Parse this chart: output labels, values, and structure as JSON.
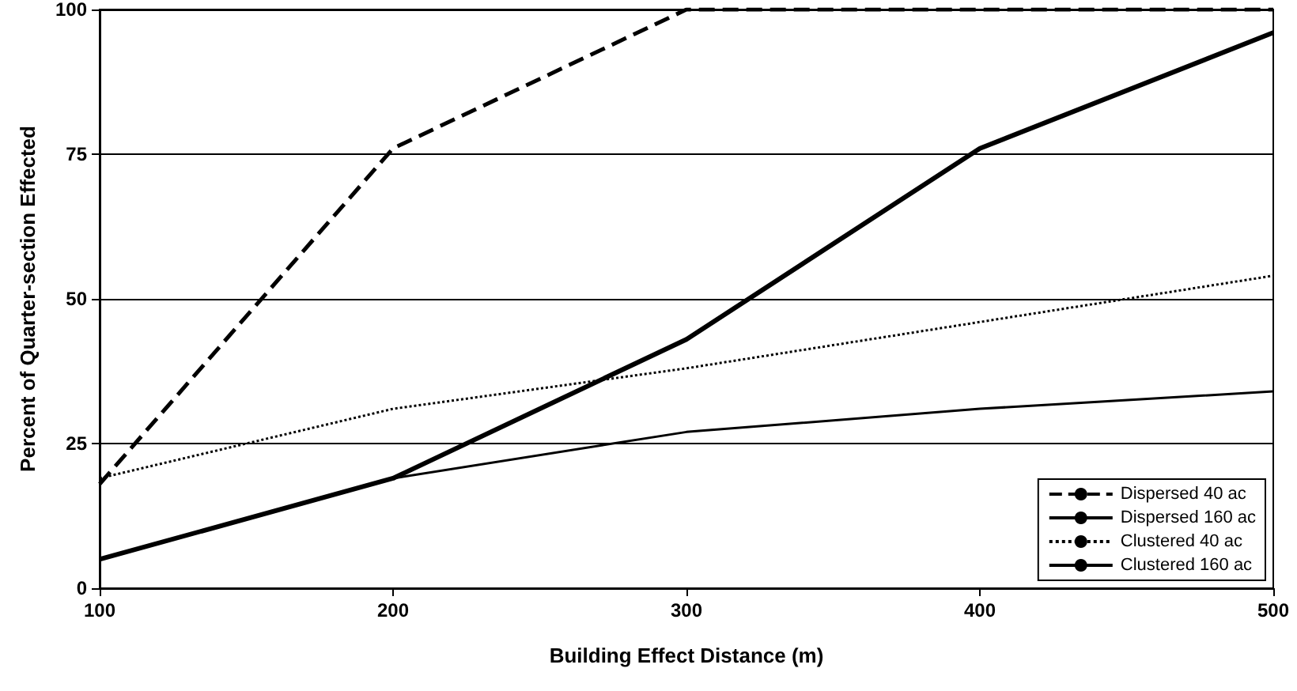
{
  "chart_data": {
    "type": "line",
    "xlabel": "Building Effect Distance (m)",
    "ylabel": "Percent of Quarter-section Effected",
    "x": [
      100,
      200,
      300,
      400,
      500
    ],
    "xlim": [
      100,
      500
    ],
    "xticks": [
      100,
      200,
      300,
      400,
      500
    ],
    "ylim": [
      0,
      100
    ],
    "yticks": [
      0,
      25,
      50,
      75,
      100
    ],
    "grid": "y",
    "legend": "bottom right",
    "marker": "none",
    "series": [
      {
        "name": "Dispersed 40 ac",
        "color": "#000000",
        "line_style": "dashed",
        "values": [
          18,
          76,
          100,
          100,
          100
        ]
      },
      {
        "name": "Dispersed 160 ac",
        "color": "#000000",
        "line_style": "solid",
        "values": [
          5,
          19,
          43,
          76,
          96
        ]
      },
      {
        "name": "Clustered 40 ac",
        "color": "#000000",
        "line_style": "dotted",
        "values": [
          19,
          31,
          38,
          46,
          54
        ]
      },
      {
        "name": "Clustered 160 ac",
        "color": "#000000",
        "line_style": "solid",
        "values": [
          5,
          19,
          27,
          31,
          34
        ]
      }
    ]
  }
}
